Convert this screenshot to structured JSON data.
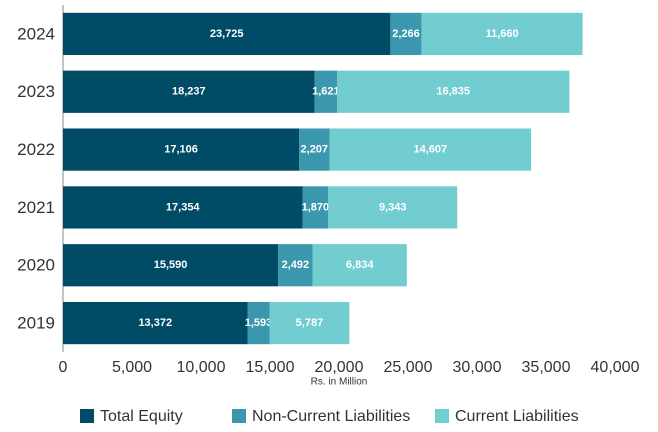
{
  "chart_data": {
    "type": "stacked_barh",
    "categories": [
      "2024",
      "2023",
      "2022",
      "2021",
      "2020",
      "2019"
    ],
    "series": [
      {
        "name": "Total Equity",
        "color": "#004b66",
        "values": [
          23725,
          18237,
          17106,
          17354,
          15590,
          13372
        ],
        "value_labels": [
          "23,725",
          "18,237",
          "17,106",
          "17,354",
          "15,590",
          "13,372"
        ]
      },
      {
        "name": "Non-Current Liabilities",
        "color": "#3a97ad",
        "values": [
          2266,
          1621,
          2207,
          1870,
          2492,
          1593
        ],
        "value_labels": [
          "2,266",
          "1,621",
          "2,207",
          "1,870",
          "2,492",
          "1,593"
        ]
      },
      {
        "name": "Current Liabilities",
        "color": "#72cdd0",
        "values": [
          11660,
          16835,
          14607,
          9343,
          6834,
          5787
        ],
        "value_labels": [
          "11,660",
          "16,835",
          "14,607",
          "9,343",
          "6,834",
          "5,787"
        ]
      }
    ],
    "xlabel": "Rs. in Million",
    "xlim": [
      0,
      40000
    ],
    "xticks": [
      0,
      {
        "value": 5000,
        "label": "5,000"
      },
      {
        "value": 10000,
        "label": "10,000"
      },
      {
        "value": 15000,
        "label": "15,000"
      },
      {
        "value": 20000,
        "label": "20,000"
      },
      {
        "value": 25000,
        "label": "25,000"
      },
      {
        "value": 30000,
        "label": "30,000"
      },
      {
        "value": 35000,
        "label": "35,000"
      },
      {
        "value": 40000,
        "label": "40,000"
      }
    ],
    "legend": "bottom"
  }
}
